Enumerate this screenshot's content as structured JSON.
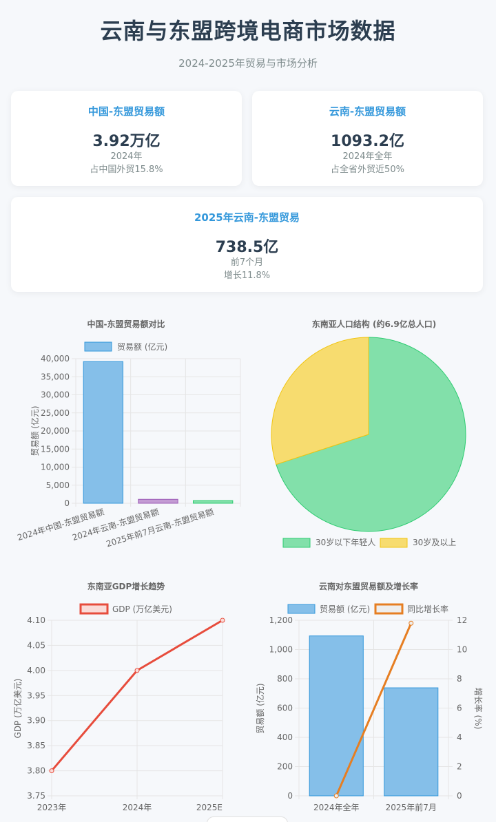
{
  "header": {
    "title": "云南与东盟跨境电商市场数据",
    "subtitle": "2024-2025年贸易与市场分析"
  },
  "cards": [
    {
      "title": "中国-东盟贸易额",
      "value": "3.92万亿",
      "sub1": "2024年",
      "sub2": "占中国外贸15.8%"
    },
    {
      "title": "云南-东盟贸易额",
      "value": "1093.2亿",
      "sub1": "2024年全年",
      "sub2": "占全省外贸近50%"
    },
    {
      "title": "2025年云南-东盟贸易",
      "value": "738.5亿",
      "sub1": "前7个月",
      "sub2": "增长11.8%"
    }
  ],
  "colors": {
    "blue": "#85bfe9",
    "blue_border": "#3498db",
    "purple": "#c39bd3",
    "purple_border": "#9b59b6",
    "green": "#82e0aa",
    "green_border": "#2ecc71",
    "yellow": "#f7dc6f",
    "yellow_border": "#f1c40f",
    "red": "#e74c3c",
    "orange": "#e67e22",
    "grid": "#e5e5e5",
    "text": "#666666"
  },
  "chart_data": [
    {
      "type": "bar",
      "title": "中国-东盟贸易额对比",
      "categories": [
        "2024年中国-东盟贸易额",
        "2024年云南-东盟贸易额",
        "2025年前7月云南-东盟贸易额"
      ],
      "series": [
        {
          "name": "贸易额 (亿元)",
          "values": [
            39200,
            1093.2,
            738.5
          ]
        }
      ],
      "ylabel": "贸易额 (亿元)",
      "ylim": [
        0,
        40000
      ],
      "yticks": [
        "0",
        "5,000",
        "10,000",
        "15,000",
        "20,000",
        "25,000",
        "30,000",
        "35,000",
        "40,000"
      ],
      "grid": true,
      "legend": "top"
    },
    {
      "type": "pie",
      "title": "东南亚人口结构 (约6.9亿总人口)",
      "labels": [
        "30岁以下年轻人",
        "30岁及以上"
      ],
      "values": [
        70,
        30
      ],
      "legend": "bottom"
    },
    {
      "type": "line",
      "title": "东南亚GDP增长趋势",
      "x": [
        "2023年",
        "2024年",
        "2025E"
      ],
      "series": [
        {
          "name": "GDP (万亿美元)",
          "values": [
            3.8,
            4.0,
            4.1
          ]
        }
      ],
      "ylabel": "GDP (万亿美元)",
      "ylim": [
        3.75,
        4.1
      ],
      "yticks": [
        "3.75",
        "3.80",
        "3.85",
        "3.90",
        "3.95",
        "4.00",
        "4.05",
        "4.10"
      ],
      "grid": true,
      "legend": "top"
    },
    {
      "type": "bar",
      "title": "云南对东盟贸易额及增长率",
      "categories": [
        "2024年全年",
        "2025年前7月"
      ],
      "series": [
        {
          "name": "贸易额 (亿元)",
          "values": [
            1093.2,
            738.5
          ]
        },
        {
          "name": "同比增长率",
          "values": [
            0,
            11.8
          ]
        }
      ],
      "ylabel": "贸易额 (亿元)",
      "y2label": "增长率 (%)",
      "ylim": [
        0,
        1200
      ],
      "y2lim": [
        0,
        12
      ],
      "yticks": [
        "0",
        "200",
        "400",
        "600",
        "800",
        "1,000",
        "1,200"
      ],
      "y2ticks": [
        "0",
        "2",
        "4",
        "6",
        "8",
        "10",
        "12"
      ],
      "grid": true,
      "legend": "top"
    }
  ]
}
